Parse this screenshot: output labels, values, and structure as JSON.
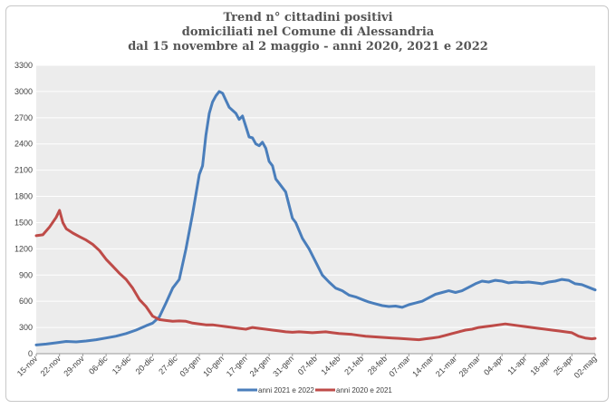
{
  "chart_data": {
    "type": "line",
    "title_lines": [
      "Trend n° cittadini positivi",
      "domiciliati nel Comune di Alessandria",
      "dal 15 novembre al 2 maggio - anni 2020, 2021 e 2022"
    ],
    "xlabel": "",
    "ylabel": "",
    "ylim": [
      0,
      3300
    ],
    "yticks": [
      0,
      300,
      600,
      900,
      1200,
      1500,
      1800,
      2100,
      2400,
      2700,
      3000,
      3300
    ],
    "grid": true,
    "legend_position": "bottom",
    "categories": [
      "15-nov",
      "22-nov",
      "29-nov",
      "06-dic",
      "13-dic",
      "20-dic",
      "27-dic",
      "03-gen",
      "10-gen",
      "17-gen",
      "24-gen",
      "31-gen",
      "07-feb",
      "14-feb",
      "21-feb",
      "28-feb",
      "07-mar",
      "14-mar",
      "21-mar",
      "28-mar",
      "04-apr",
      "11-apr",
      "18-apr",
      "25-apr",
      "02-mag"
    ],
    "x": [
      0,
      7,
      14,
      21,
      28,
      35,
      42,
      49,
      56,
      63,
      70,
      77,
      84,
      91,
      98,
      105,
      112,
      119,
      126,
      133,
      140,
      147,
      154,
      161,
      168
    ],
    "series": [
      {
        "name": "anni 2021 e 2022",
        "color": "#4a7ebb",
        "x": [
          0,
          3,
          6,
          9,
          12,
          15,
          18,
          21,
          24,
          27,
          30,
          33,
          35,
          37,
          39,
          41,
          43,
          45,
          47,
          49,
          50,
          51,
          52,
          53,
          54,
          55,
          56,
          57,
          58,
          60,
          61,
          62,
          63,
          64,
          65,
          66,
          67,
          68,
          69,
          70,
          71,
          72,
          73,
          74,
          75,
          76,
          77,
          78,
          80,
          82,
          84,
          86,
          88,
          90,
          92,
          94,
          96,
          98,
          100,
          102,
          104,
          106,
          108,
          110,
          112,
          114,
          116,
          118,
          120,
          122,
          124,
          126,
          128,
          130,
          132,
          134,
          136,
          138,
          140,
          142,
          144,
          146,
          148,
          150,
          152,
          154,
          156,
          158,
          160,
          162,
          164,
          166,
          168
        ],
        "values": [
          100,
          110,
          125,
          140,
          135,
          145,
          160,
          180,
          200,
          230,
          270,
          320,
          350,
          420,
          580,
          750,
          850,
          1200,
          1600,
          2050,
          2150,
          2500,
          2750,
          2880,
          2950,
          3000,
          2980,
          2900,
          2820,
          2750,
          2680,
          2720,
          2600,
          2480,
          2470,
          2400,
          2380,
          2420,
          2350,
          2200,
          2150,
          2000,
          1950,
          1900,
          1850,
          1700,
          1550,
          1500,
          1320,
          1200,
          1050,
          900,
          820,
          750,
          720,
          670,
          650,
          620,
          590,
          570,
          550,
          540,
          545,
          530,
          560,
          580,
          600,
          640,
          680,
          700,
          720,
          700,
          720,
          760,
          800,
          830,
          820,
          840,
          830,
          810,
          820,
          815,
          820,
          810,
          800,
          820,
          830,
          850,
          840,
          800,
          790,
          760,
          730
        ]
      },
      {
        "name": "anni 2020 e 2021",
        "color": "#be4b48",
        "x": [
          0,
          2,
          4,
          6,
          7,
          8,
          9,
          11,
          13,
          15,
          17,
          19,
          21,
          23,
          25,
          27,
          29,
          31,
          33,
          35,
          37,
          39,
          41,
          43,
          45,
          47,
          49,
          51,
          53,
          55,
          57,
          59,
          61,
          63,
          65,
          67,
          69,
          71,
          73,
          75,
          77,
          79,
          81,
          83,
          85,
          87,
          89,
          91,
          93,
          95,
          97,
          99,
          101,
          103,
          105,
          107,
          109,
          111,
          113,
          115,
          117,
          119,
          121,
          123,
          125,
          127,
          129,
          131,
          133,
          135,
          137,
          139,
          141,
          143,
          145,
          147,
          149,
          151,
          153,
          155,
          157,
          159,
          161,
          163,
          165,
          167,
          168
        ],
        "values": [
          1350,
          1360,
          1450,
          1560,
          1640,
          1500,
          1430,
          1380,
          1340,
          1300,
          1250,
          1180,
          1080,
          1000,
          920,
          850,
          750,
          620,
          540,
          430,
          390,
          380,
          370,
          375,
          370,
          350,
          340,
          330,
          330,
          320,
          310,
          300,
          290,
          280,
          300,
          290,
          280,
          270,
          260,
          250,
          245,
          250,
          245,
          240,
          245,
          250,
          240,
          230,
          225,
          220,
          210,
          200,
          195,
          190,
          185,
          180,
          175,
          170,
          165,
          160,
          170,
          180,
          190,
          210,
          230,
          250,
          270,
          280,
          300,
          310,
          320,
          330,
          340,
          330,
          320,
          310,
          300,
          290,
          280,
          270,
          260,
          250,
          240,
          200,
          180,
          170,
          175
        ]
      }
    ]
  }
}
